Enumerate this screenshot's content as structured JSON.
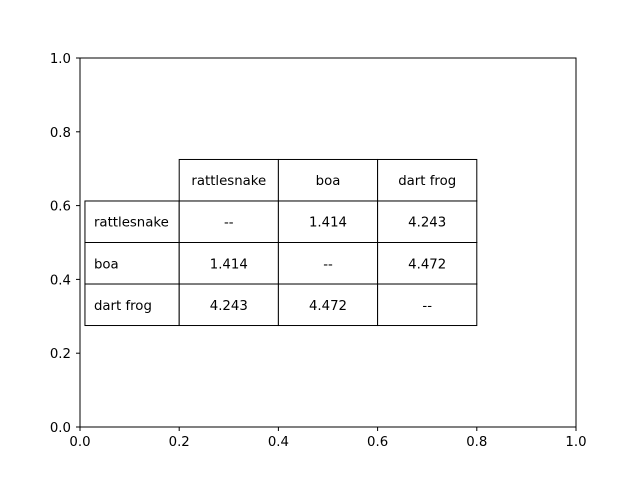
{
  "chart_data": {
    "type": "table",
    "title": "",
    "xlabel": "",
    "ylabel": "",
    "xlim": [
      0,
      1
    ],
    "ylim": [
      0,
      1
    ],
    "x_ticks": [
      "0.0",
      "0.2",
      "0.4",
      "0.6",
      "0.8",
      "1.0"
    ],
    "y_ticks": [
      "0.0",
      "0.2",
      "0.4",
      "0.6",
      "0.8",
      "1.0"
    ],
    "grid": false,
    "table_bbox": [
      0.01,
      0.275,
      0.79,
      0.45
    ],
    "col_labels": [
      "rattlesnake",
      "boa",
      "dart frog"
    ],
    "row_labels": [
      "rattlesnake",
      "boa",
      "dart frog"
    ],
    "cells": [
      [
        "--",
        "1.414",
        "4.243"
      ],
      [
        "1.414",
        "--",
        "4.472"
      ],
      [
        "4.243",
        "4.472",
        "--"
      ]
    ],
    "colors": {
      "background": "#ffffff",
      "line": "#000000",
      "text": "#000000"
    }
  }
}
